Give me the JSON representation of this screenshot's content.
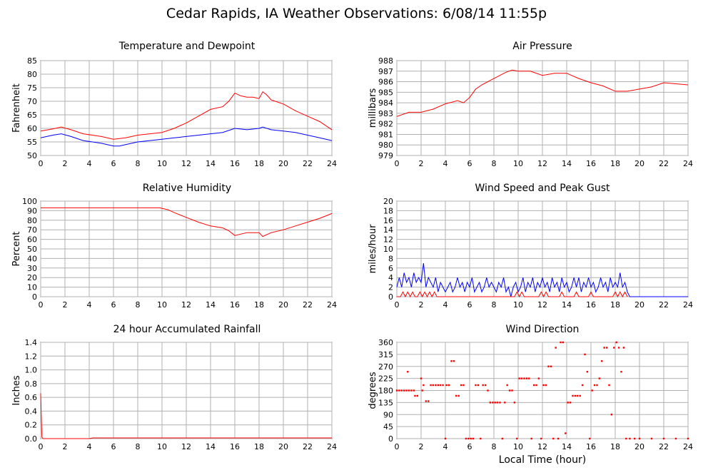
{
  "title": "Cedar Rapids, IA Weather Observations: 6/08/14 11:55p",
  "x_axis_label": "Local Time (hour)",
  "colors": {
    "red": "#ff0000",
    "blue": "#0000ff",
    "grid": "#b0b0b0"
  },
  "chart_data": [
    {
      "id": "temp",
      "type": "line",
      "title": "Temperature and Dewpoint",
      "ylabel": "Fahrenheit",
      "xlim": [
        0,
        24
      ],
      "ylim": [
        50,
        85
      ],
      "yticks": [
        50,
        55,
        60,
        65,
        70,
        75,
        80,
        85
      ],
      "xticks": [
        0,
        2,
        4,
        6,
        8,
        10,
        12,
        14,
        16,
        18,
        20,
        22,
        24
      ],
      "grid": true,
      "series": [
        {
          "color": "#ff0000",
          "x": [
            0,
            1,
            1.7,
            2.5,
            3.5,
            5,
            6,
            7,
            8,
            9,
            10,
            11,
            12,
            13,
            14,
            15,
            15.5,
            16,
            16.5,
            17,
            17.5,
            18,
            18.3,
            18.6,
            19,
            20,
            21,
            22,
            23,
            24
          ],
          "y": [
            59,
            59.8,
            60.5,
            59.5,
            58,
            57,
            56,
            56.5,
            57.5,
            58,
            58.5,
            60,
            62,
            64.5,
            67,
            68,
            70,
            73,
            72,
            71.5,
            71.5,
            71,
            73.5,
            72.5,
            70.5,
            69,
            66.5,
            64.5,
            62.5,
            59.5
          ]
        },
        {
          "color": "#0000ff",
          "x": [
            0,
            1,
            1.7,
            2.5,
            3.5,
            5,
            6,
            6.5,
            7,
            8,
            9,
            10,
            11,
            12,
            13,
            14,
            15,
            16,
            17,
            18,
            18.3,
            19,
            20,
            21,
            22,
            23,
            24
          ],
          "y": [
            56.5,
            57.5,
            58,
            57,
            55.5,
            54.5,
            53.5,
            53.5,
            54,
            55,
            55.5,
            56,
            56.5,
            57,
            57.5,
            58,
            58.5,
            60,
            59.5,
            60,
            60.5,
            59.5,
            59,
            58.5,
            57.5,
            56.5,
            55.5
          ]
        }
      ]
    },
    {
      "id": "pressure",
      "type": "line",
      "title": "Air Pressure",
      "ylabel": "millibars",
      "xlim": [
        0,
        24
      ],
      "ylim": [
        979,
        988
      ],
      "yticks": [
        979,
        980,
        981,
        982,
        983,
        984,
        985,
        986,
        987,
        988
      ],
      "xticks": [
        0,
        2,
        4,
        6,
        8,
        10,
        12,
        14,
        16,
        18,
        20,
        22,
        24
      ],
      "grid": true,
      "series": [
        {
          "color": "#ff0000",
          "x": [
            0,
            1,
            2,
            3,
            4,
            5,
            5.5,
            6,
            6.5,
            7,
            8,
            9,
            9.5,
            10,
            11,
            12,
            13,
            14,
            15,
            16,
            17,
            18,
            19,
            20,
            21,
            22,
            23,
            24
          ],
          "y": [
            982.7,
            983.1,
            983.1,
            983.4,
            983.9,
            984.2,
            984.0,
            984.5,
            985.3,
            985.7,
            986.3,
            986.9,
            987.1,
            987.0,
            987.0,
            986.6,
            986.8,
            986.8,
            986.3,
            985.9,
            985.6,
            985.1,
            985.1,
            985.3,
            985.5,
            985.9,
            985.8,
            985.7
          ]
        }
      ]
    },
    {
      "id": "humidity",
      "type": "line",
      "title": "Relative Humidity",
      "ylabel": "Percent",
      "xlim": [
        0,
        24
      ],
      "ylim": [
        0,
        100
      ],
      "yticks": [
        0,
        10,
        20,
        30,
        40,
        50,
        60,
        70,
        80,
        90,
        100
      ],
      "xticks": [
        0,
        2,
        4,
        6,
        8,
        10,
        12,
        14,
        16,
        18,
        20,
        22,
        24
      ],
      "grid": true,
      "series": [
        {
          "color": "#ff0000",
          "x": [
            0,
            4,
            8,
            9.8,
            10.5,
            11,
            12,
            13,
            14,
            15,
            15.5,
            16,
            17,
            18,
            18.3,
            19,
            20,
            21,
            22,
            23,
            24
          ],
          "y": [
            93,
            93,
            93,
            93,
            91,
            88,
            83,
            78,
            74,
            72,
            69,
            64,
            67,
            67,
            63,
            67,
            70,
            74,
            78,
            82,
            87
          ]
        }
      ]
    },
    {
      "id": "wind",
      "type": "line",
      "title": "Wind Speed and Peak Gust",
      "ylabel": "miles/hour",
      "xlim": [
        0,
        24
      ],
      "ylim": [
        0,
        20
      ],
      "yticks": [
        0,
        2,
        4,
        6,
        8,
        10,
        12,
        14,
        16,
        18,
        20
      ],
      "xticks": [
        0,
        2,
        4,
        6,
        8,
        10,
        12,
        14,
        16,
        18,
        20,
        22,
        24
      ],
      "grid": true,
      "series": [
        {
          "color": "#0000ff",
          "x": [
            0,
            0.2,
            0.4,
            0.6,
            0.8,
            1,
            1.2,
            1.4,
            1.6,
            1.8,
            2,
            2.2,
            2.4,
            2.6,
            2.8,
            3,
            3.2,
            3.4,
            3.6,
            3.8,
            4,
            4.2,
            4.4,
            4.6,
            4.8,
            5,
            5.2,
            5.4,
            5.6,
            5.8,
            6,
            6.2,
            6.4,
            6.6,
            6.8,
            7,
            7.2,
            7.4,
            7.6,
            7.8,
            8,
            8.2,
            8.4,
            8.6,
            8.8,
            9,
            9.2,
            9.4,
            9.6,
            9.8,
            10,
            10.2,
            10.4,
            10.6,
            10.8,
            11,
            11.2,
            11.4,
            11.6,
            11.8,
            12,
            12.2,
            12.4,
            12.6,
            12.8,
            13,
            13.2,
            13.4,
            13.6,
            13.8,
            14,
            14.2,
            14.4,
            14.6,
            14.8,
            15,
            15.2,
            15.4,
            15.6,
            15.8,
            16,
            16.2,
            16.4,
            16.6,
            16.8,
            17,
            17.2,
            17.4,
            17.6,
            17.8,
            18,
            18.2,
            18.4,
            18.6,
            18.8,
            19,
            19.2,
            20,
            22,
            24
          ],
          "y": [
            2,
            4,
            2,
            5,
            3,
            4,
            2,
            5,
            3,
            4,
            3,
            7,
            2,
            4,
            3,
            2,
            4,
            1,
            3,
            2,
            1,
            2,
            3,
            1,
            2,
            4,
            2,
            3,
            1,
            3,
            2,
            4,
            1,
            2,
            3,
            1,
            2,
            4,
            2,
            3,
            2,
            1,
            3,
            2,
            4,
            1,
            2,
            0,
            2,
            3,
            1,
            2,
            4,
            1,
            3,
            2,
            4,
            1,
            3,
            2,
            4,
            2,
            3,
            1,
            4,
            2,
            3,
            1,
            4,
            2,
            3,
            1,
            2,
            4,
            2,
            4,
            1,
            3,
            2,
            4,
            2,
            3,
            1,
            2,
            4,
            2,
            3,
            1,
            4,
            2,
            3,
            2,
            5,
            2,
            3,
            1,
            0,
            0,
            0,
            0
          ]
        },
        {
          "color": "#ff0000",
          "x": [
            0,
            0.3,
            0.5,
            0.7,
            0.9,
            1.1,
            1.3,
            1.5,
            1.7,
            1.9,
            2.1,
            2.3,
            2.5,
            2.7,
            2.9,
            3.1,
            3.3,
            3.6,
            4,
            9.5,
            9.7,
            9.9,
            10.1,
            10.3,
            10.5,
            10.7,
            11.7,
            11.9,
            12.1,
            12.3,
            12.5,
            13.4,
            13.6,
            13.8,
            14.6,
            14.8,
            15,
            15.8,
            16,
            16.2,
            17.8,
            18,
            18.2,
            18.4,
            18.6,
            18.8,
            19
          ],
          "y": [
            0,
            0,
            1,
            0,
            1,
            0,
            1,
            0,
            0,
            1,
            0,
            1,
            0,
            1,
            0,
            1,
            0,
            0,
            0,
            0,
            0,
            1,
            0,
            1,
            0,
            0,
            0,
            1,
            0,
            1,
            0,
            0,
            1,
            0,
            0,
            1,
            0,
            0,
            1,
            0,
            0,
            1,
            0,
            1,
            0,
            1,
            0
          ]
        }
      ]
    },
    {
      "id": "rain",
      "type": "line",
      "title": "24 hour Accumulated Rainfall",
      "ylabel": "Inches",
      "xlim": [
        0,
        24
      ],
      "ylim": [
        0,
        1.4
      ],
      "yticks": [
        0,
        0.2,
        0.4,
        0.6,
        0.8,
        1,
        1.2,
        1.4
      ],
      "ytick_labels": [
        "0.0",
        "0.2",
        "0.4",
        "0.6",
        "0.8",
        "1.0",
        "1.2",
        "1.4"
      ],
      "xticks": [
        0,
        2,
        4,
        6,
        8,
        10,
        12,
        14,
        16,
        18,
        20,
        22,
        24
      ],
      "grid": true,
      "series": [
        {
          "color": "#ff0000",
          "x": [
            0,
            0.05,
            0.1,
            0.2,
            4,
            4.3,
            24
          ],
          "y": [
            0.66,
            0.3,
            0.02,
            0.0,
            0.0,
            0.01,
            0.01
          ]
        }
      ]
    },
    {
      "id": "direction",
      "type": "scatter",
      "title": "Wind Direction",
      "ylabel": "degrees",
      "xlabel": "Local Time (hour)",
      "xlim": [
        0,
        24
      ],
      "ylim": [
        0,
        360
      ],
      "yticks": [
        0,
        45,
        90,
        135,
        180,
        225,
        270,
        315,
        360
      ],
      "xticks": [
        0,
        2,
        4,
        6,
        8,
        10,
        12,
        14,
        16,
        18,
        20,
        22,
        24
      ],
      "grid": true,
      "series": [
        {
          "color": "#ff0000",
          "x": [
            0,
            0.2,
            0.4,
            0.6,
            0.8,
            0.9,
            1.0,
            1.2,
            1.4,
            1.5,
            1.7,
            2.0,
            2.1,
            2.2,
            2.4,
            2.6,
            2.8,
            3.0,
            3.2,
            3.4,
            3.6,
            3.8,
            4.0,
            4.1,
            4.3,
            4.5,
            4.7,
            4.9,
            5.1,
            5.3,
            5.5,
            5.7,
            5.9,
            6.1,
            6.3,
            6.5,
            6.7,
            6.9,
            7.1,
            7.3,
            7.5,
            7.7,
            7.9,
            8.1,
            8.3,
            8.5,
            8.7,
            8.9,
            9.1,
            9.3,
            9.5,
            9.7,
            9.9,
            10.1,
            10.3,
            10.5,
            10.7,
            10.9,
            11.1,
            11.3,
            11.5,
            11.7,
            11.9,
            12.1,
            12.3,
            12.5,
            12.7,
            12.9,
            13.1,
            13.3,
            13.5,
            13.7,
            13.9,
            14.1,
            14.3,
            14.5,
            14.7,
            14.9,
            15.1,
            15.3,
            15.5,
            15.7,
            15.9,
            16.1,
            16.3,
            16.5,
            16.7,
            16.9,
            17.1,
            17.3,
            17.5,
            17.7,
            17.9,
            18.1,
            18.3,
            18.5,
            18.7,
            18.9,
            19.2,
            19.6,
            20,
            21,
            22,
            23,
            24
          ],
          "y": [
            180,
            180,
            180,
            180,
            180,
            250,
            180,
            180,
            180,
            160,
            160,
            225,
            180,
            200,
            140,
            140,
            200,
            200,
            200,
            200,
            200,
            200,
            0,
            200,
            200,
            290,
            290,
            160,
            160,
            200,
            200,
            0,
            0,
            0,
            0,
            200,
            200,
            0,
            200,
            200,
            180,
            135,
            135,
            135,
            135,
            135,
            0,
            135,
            200,
            180,
            180,
            135,
            0,
            225,
            225,
            225,
            225,
            225,
            0,
            200,
            200,
            225,
            0,
            200,
            200,
            270,
            270,
            0,
            340,
            0,
            360,
            360,
            20,
            135,
            135,
            160,
            160,
            160,
            160,
            200,
            315,
            250,
            0,
            180,
            200,
            200,
            225,
            290,
            340,
            340,
            200,
            90,
            340,
            360,
            340,
            250,
            340,
            0,
            0,
            0,
            0,
            0,
            0,
            0,
            0
          ]
        }
      ]
    }
  ]
}
